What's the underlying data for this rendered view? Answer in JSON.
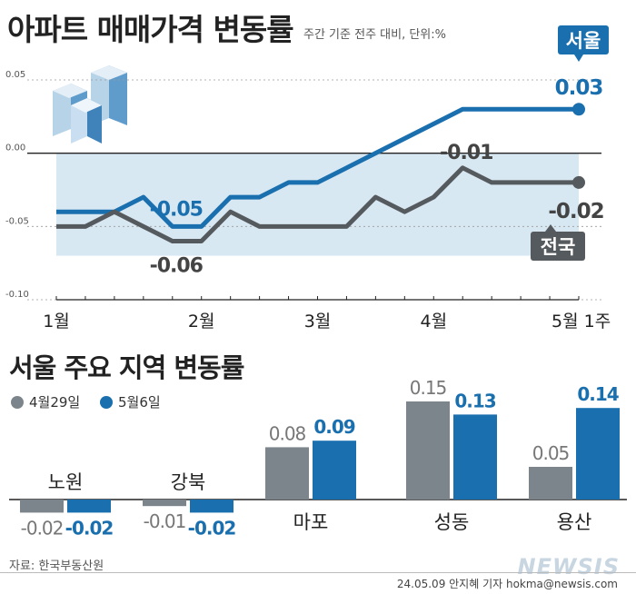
{
  "header": {
    "title": "아파트 매매가격 변동률",
    "subtitle": "주간 기준 전주 대비, 단위:%"
  },
  "section2": {
    "title": "서울 주요 지역 변동률"
  },
  "footer": {
    "source": "자료: 한국부동산원",
    "credit": "24.05.09 안지혜 기자 hokma@newsis.com",
    "watermark": "NEWSIS"
  },
  "colors": {
    "seoul": "#1a6fae",
    "national": "#555a5e",
    "band": "#d8e8f3",
    "bar_prev": "#7d858c",
    "bar_curr": "#1a6fae"
  },
  "chart_data": [
    {
      "type": "line",
      "ylim": [
        -0.1,
        0.05
      ],
      "yticks": [
        "0.05",
        "0.00",
        "-0.05",
        "-0.10"
      ],
      "x_tick_labels": [
        "1월",
        "2월",
        "3월",
        "4월",
        "5월 1주"
      ],
      "x_tick_weeks": [
        0,
        5,
        9,
        13,
        18
      ],
      "num_weeks": 19,
      "series": [
        {
          "name": "서울",
          "color": "#1a6fae",
          "values": [
            -0.04,
            -0.04,
            -0.04,
            -0.03,
            -0.05,
            -0.05,
            -0.03,
            -0.03,
            -0.02,
            -0.02,
            -0.01,
            0.0,
            0.01,
            0.02,
            0.03,
            0.03,
            0.03,
            0.03,
            0.03
          ],
          "end_label": "0.03"
        },
        {
          "name": "전국",
          "color": "#555a5e",
          "values": [
            -0.05,
            -0.05,
            -0.04,
            -0.05,
            -0.06,
            -0.06,
            -0.04,
            -0.05,
            -0.05,
            -0.05,
            -0.05,
            -0.03,
            -0.04,
            -0.03,
            -0.01,
            -0.02,
            -0.02,
            -0.02,
            -0.02
          ],
          "end_label": "-0.02"
        }
      ],
      "annotations": [
        {
          "text": "-0.05",
          "series": "서울",
          "week": 4
        },
        {
          "text": "-0.06",
          "series": "전국",
          "week": 4
        },
        {
          "text": "-0.01",
          "series": "전국",
          "week": 14
        }
      ]
    },
    {
      "type": "bar",
      "categories": [
        "노원",
        "강북",
        "마포",
        "성동",
        "용산"
      ],
      "series": [
        {
          "name": "4월29일",
          "values": [
            -0.02,
            -0.01,
            0.08,
            0.15,
            0.05
          ],
          "labels": [
            "-0.02",
            "-0.01",
            "0.08",
            "0.15",
            "0.05"
          ]
        },
        {
          "name": "5월6일",
          "values": [
            -0.02,
            -0.02,
            0.09,
            0.13,
            0.14
          ],
          "labels": [
            "-0.02",
            "-0.02",
            "0.09",
            "0.13",
            "0.14"
          ]
        }
      ]
    }
  ]
}
